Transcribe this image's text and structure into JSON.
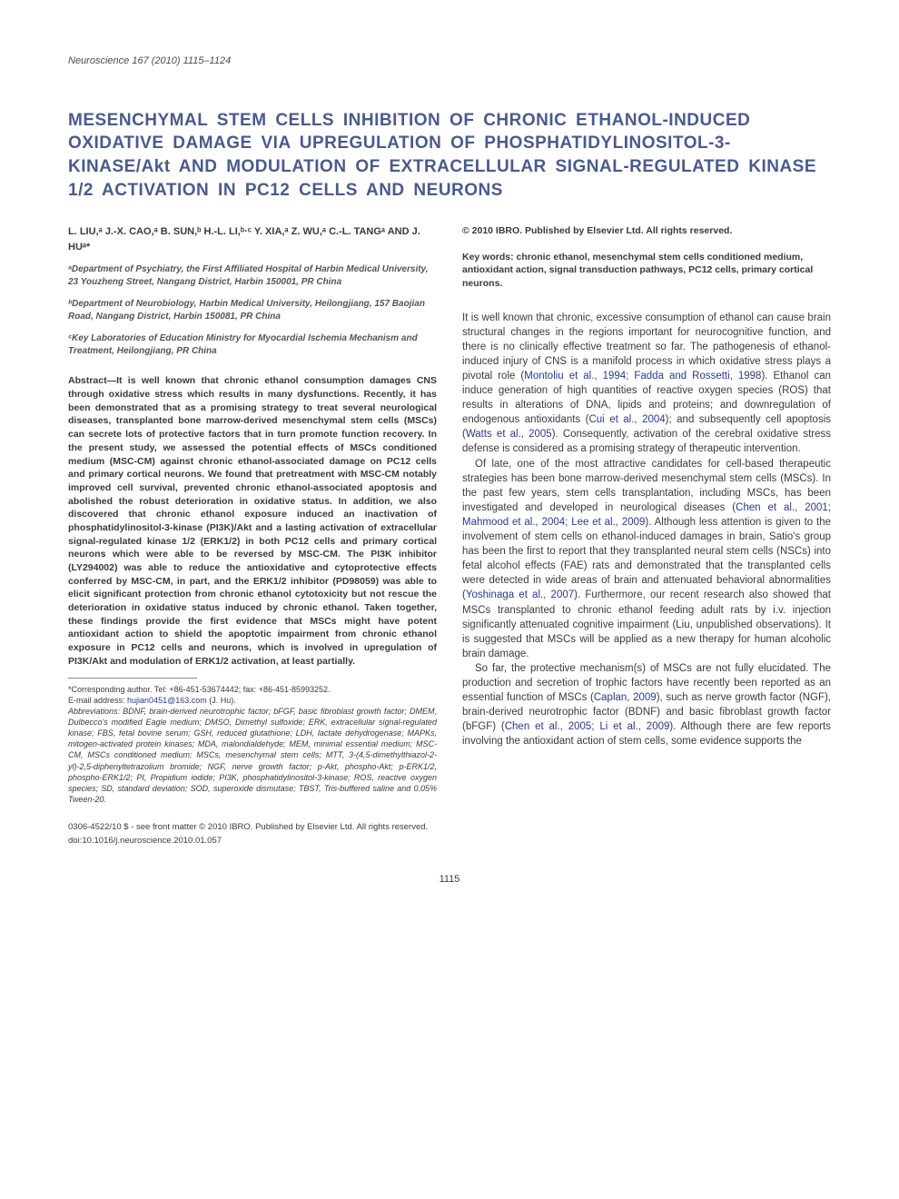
{
  "journal_ref": {
    "journal": "Neuroscience",
    "vol_pages": "167 (2010) 1115–1124"
  },
  "title": "MESENCHYMAL STEM CELLS INHIBITION OF CHRONIC ETHANOL-INDUCED OXIDATIVE DAMAGE VIA UPREGULATION OF PHOSPHATIDYLINOSITOL-3-KINASE/Akt AND MODULATION OF EXTRACELLULAR SIGNAL-REGULATED KINASE 1/2 ACTIVATION IN PC12 CELLS AND NEURONS",
  "authors": "L. LIU,ᵃ J.-X. CAO,ᵃ B. SUN,ᵇ H.-L. LI,ᵇ·ᶜ Y. XIA,ᵃ Z. WU,ᵃ C.-L. TANGᵃ AND J. HUᵃ*",
  "affiliations": [
    "ᵃDepartment of Psychiatry, the First Affiliated Hospital of Harbin Medical University, 23 Youzheng Street, Nangang District, Harbin 150001, PR China",
    "ᵇDepartment of Neurobiology, Harbin Medical University, Heilongjiang, 157 Baojian Road, Nangang District, Harbin 150081, PR China",
    "ᶜKey Laboratories of Education Ministry for Myocardial Ischemia Mechanism and Treatment, Heilongjiang, PR China"
  ],
  "abstract": "Abstract—It is well known that chronic ethanol consumption damages CNS through oxidative stress which results in many dysfunctions. Recently, it has been demonstrated that as a promising strategy to treat several neurological diseases, transplanted bone marrow-derived mesenchymal stem cells (MSCs) can secrete lots of protective factors that in turn promote function recovery. In the present study, we assessed the potential effects of MSCs conditioned medium (MSC-CM) against chronic ethanol-associated damage on PC12 cells and primary cortical neurons. We found that pretreatment with MSC-CM notably improved cell survival, prevented chronic ethanol-associated apoptosis and abolished the robust deterioration in oxidative status. In addition, we also discovered that chronic ethanol exposure induced an inactivation of phosphatidylinositol-3-kinase (PI3K)/Akt and a lasting activation of extracellular signal-regulated kinase 1/2 (ERK1/2) in both PC12 cells and primary cortical neurons which were able to be reversed by MSC-CM. The PI3K inhibitor (LY294002) was able to reduce the antioxidative and cytoprotective effects conferred by MSC-CM, in part, and the ERK1/2 inhibitor (PD98059) was able to elicit significant protection from chronic ethanol cytotoxicity but not rescue the deterioration in oxidative status induced by chronic ethanol. Taken together, these findings provide the first evidence that MSCs might have potent antioxidant action to shield the apoptotic impairment from chronic ethanol exposure in PC12 cells and neurons, which is involved in upregulation of PI3K/Akt and modulation of ERK1/2 activation, at least partially.",
  "corresponding": "*Corresponding author. Tel: +86-451-53674442; fax: +86-451-85993252.",
  "email_label": "E-mail address: ",
  "email": "hujian0451@163.com",
  "email_who": " (J. Hu).",
  "abbreviations": "Abbreviations: BDNF, brain-derived neurotrophic factor; bFGF, basic fibroblast growth factor; DMEM, Dulbecco's modified Eagle medium; DMSO, Dimethyl sulfoxide; ERK, extracellular signal-regulated kinase; FBS, fetal bovine serum; GSH, reduced glutathione; LDH, lactate dehydrogenase; MAPKs, mitogen-activated protein kinases; MDA, malondialdehyde; MEM, minimal essential medium; MSC-CM, MSCs conditioned medium; MSCs, mesenchymal stem cells; MTT, 3-(4,5-dimethylthiazol-2-yl)-2,5-diphenyltetrazolium bromide; NGF, nerve growth factor; p-Akt, phospho-Akt; p-ERK1/2, phospho-ERK1/2; PI, Propidium iodide; PI3K, phosphatidylinositol-3-kinase; ROS, reactive oxygen species; SD, standard deviation; SOD, superoxide dismutase; TBST, Tris-buffered saline and 0.05% Tween-20.",
  "copyright": "© 2010 IBRO. Published by Elsevier Ltd. All rights reserved.",
  "keywords": "Key words: chronic ethanol, mesenchymal stem cells conditioned medium, antioxidant action, signal transduction pathways, PC12 cells, primary cortical neurons.",
  "body": {
    "p1_a": "It is well known that chronic, excessive consumption of ethanol can cause brain structural changes in the regions important for neurocognitive function, and there is no clinically effective treatment so far. The pathogenesis of ethanol-induced injury of CNS is a manifold process in which oxidative stress plays a pivotal role (",
    "p1_ref1": "Montoliu et al., 1994; Fadda and Rossetti, 1998",
    "p1_b": "). Ethanol can induce generation of high quantities of reactive oxygen species (ROS) that results in alterations of DNA, lipids and proteins; and downregulation of endogenous antioxidants (",
    "p1_ref2": "Cui et al., 2004",
    "p1_c": "); and subsequently cell apoptosis (",
    "p1_ref3": "Watts et al., 2005",
    "p1_d": "). Consequently, activation of the cerebral oxidative stress defense is considered as a promising strategy of therapeutic intervention.",
    "p2_a": "Of late, one of the most attractive candidates for cell-based therapeutic strategies has been bone marrow-derived mesenchymal stem cells (MSCs). In the past few years, stem cells transplantation, including MSCs, has been investigated and developed in neurological diseases (",
    "p2_ref1": "Chen et al., 2001; Mahmood et al., 2004; Lee et al., 2009",
    "p2_b": "). Although less attention is given to the involvement of stem cells on ethanol-induced damages in brain, Satio's group has been the first to report that they transplanted neural stem cells (NSCs) into fetal alcohol effects (FAE) rats and demonstrated that the transplanted cells were detected in wide areas of brain and attenuated behavioral abnormalities (",
    "p2_ref2": "Yoshinaga et al., 2007",
    "p2_c": "). Furthermore, our recent research also showed that MSCs transplanted to chronic ethanol feeding adult rats by i.v. injection significantly attenuated cognitive impairment (Liu, unpublished observations). It is suggested that MSCs will be applied as a new therapy for human alcoholic brain damage.",
    "p3_a": "So far, the protective mechanism(s) of MSCs are not fully elucidated. The production and secretion of trophic factors have recently been reported as an essential function of MSCs (",
    "p3_ref1": "Caplan, 2009",
    "p3_b": "), such as nerve growth factor (NGF), brain-derived neurotrophic factor (BDNF) and basic fibroblast growth factor (bFGF) (",
    "p3_ref2": "Chen et al., 2005; Li et al., 2009",
    "p3_c": "). Although there are few reports involving the antioxidant action of stem cells, some evidence supports the"
  },
  "footer_line": "0306-4522/10 $ - see front matter © 2010 IBRO. Published by Elsevier Ltd. All rights reserved.",
  "doi": "doi:10.1016/j.neuroscience.2010.01.057",
  "page": "1115",
  "colors": {
    "title": "#4a5a8a",
    "refs": "#2a3a8a",
    "text": "#3a3a3a"
  }
}
